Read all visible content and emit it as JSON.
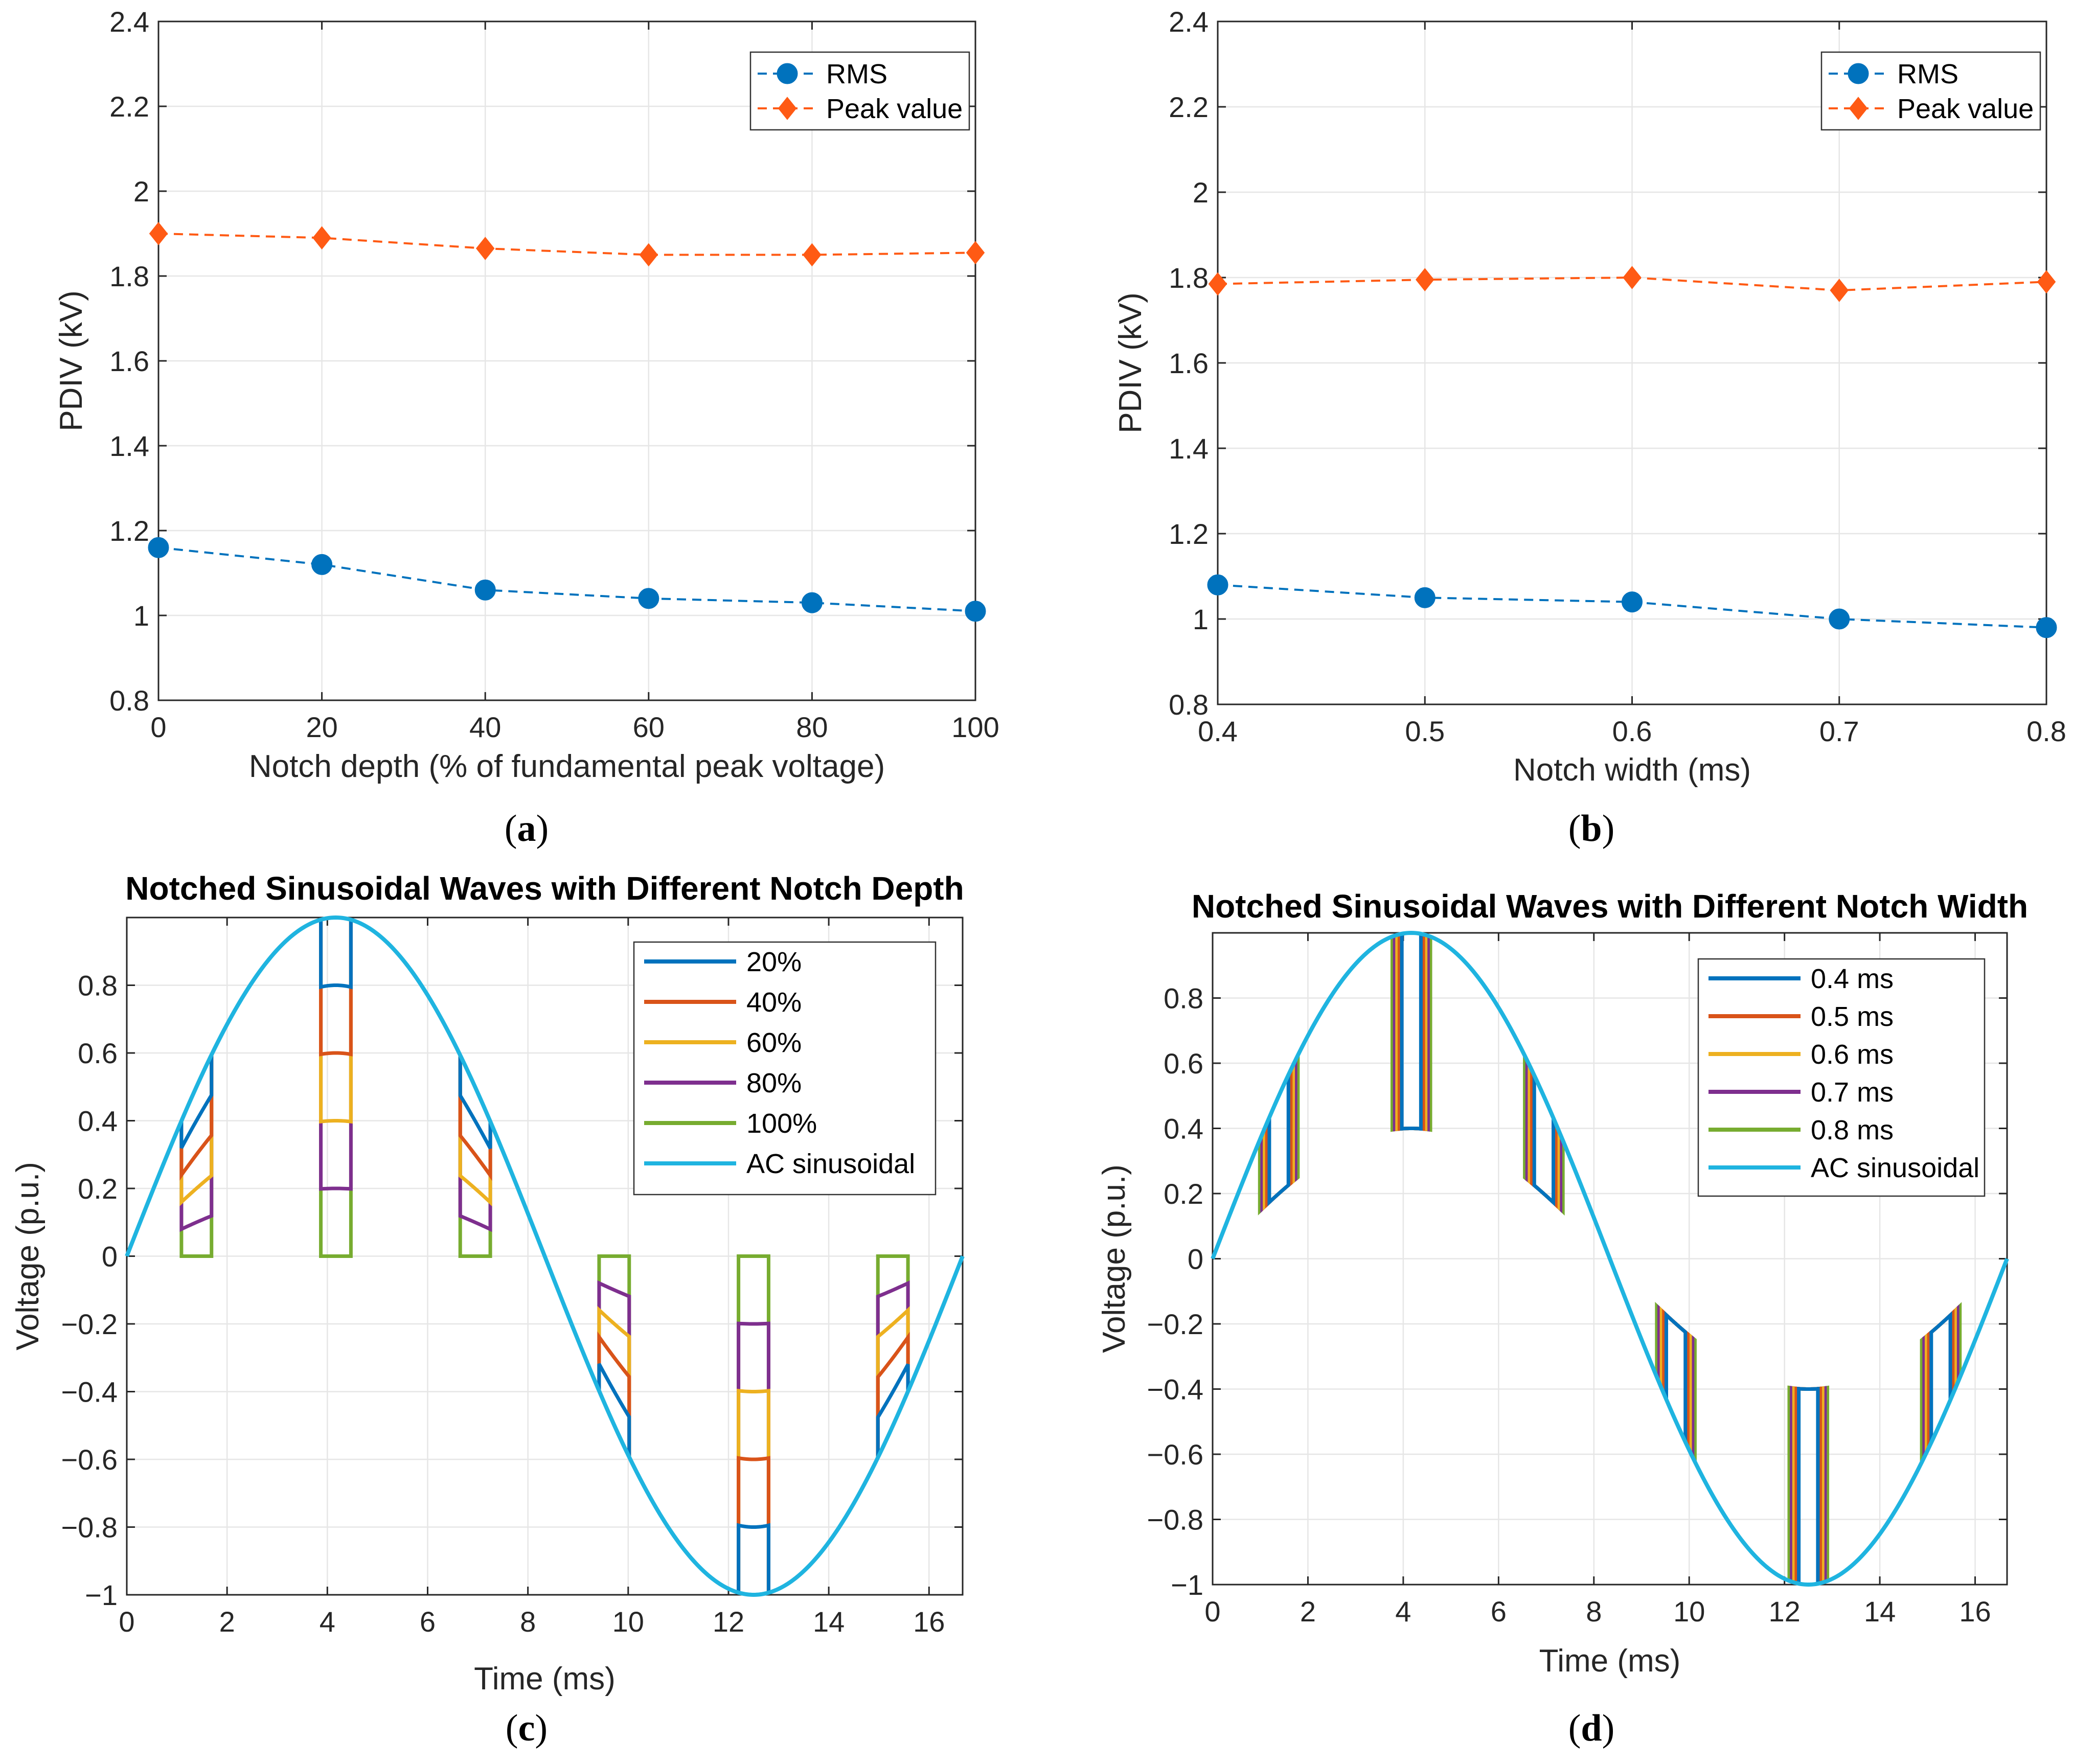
{
  "colors": {
    "rms": "#0072BD",
    "peak": "#FF5A14",
    "series": [
      "#0072BD",
      "#D95319",
      "#EDB120",
      "#7E2F8E",
      "#77AC30"
    ],
    "sine": "#1FB4E0",
    "grid": "#E6E6E6",
    "axis": "#262626"
  },
  "chart_data": [
    {
      "id": "a",
      "type": "line",
      "caption": "a",
      "title": "",
      "xlabel": "Notch depth (% of fundamental peak voltage)",
      "ylabel": "PDIV (kV)",
      "xlim": [
        0,
        100
      ],
      "ylim": [
        0.8,
        2.4
      ],
      "xticks": [
        0,
        20,
        40,
        60,
        80,
        100
      ],
      "yticks": [
        0.8,
        1,
        1.2,
        1.4,
        1.6,
        1.8,
        2,
        2.2,
        2.4
      ],
      "xtick_labels": [
        "0",
        "20",
        "40",
        "60",
        "80",
        "100"
      ],
      "ytick_labels": [
        "0.8",
        "1",
        "1.2",
        "1.4",
        "1.6",
        "1.8",
        "2",
        "2.2",
        "2.4"
      ],
      "x": [
        0,
        20,
        40,
        60,
        80,
        100
      ],
      "series": [
        {
          "name": "RMS",
          "marker": "circle",
          "values": [
            1.16,
            1.12,
            1.06,
            1.04,
            1.03,
            1.01
          ]
        },
        {
          "name": "Peak value",
          "marker": "diamond",
          "values": [
            1.9,
            1.89,
            1.865,
            1.85,
            1.85,
            1.855
          ]
        }
      ]
    },
    {
      "id": "b",
      "type": "line",
      "caption": "b",
      "title": "",
      "xlabel": "Notch width (ms)",
      "ylabel": "PDIV (kV)",
      "xlim": [
        0.4,
        0.8
      ],
      "ylim": [
        0.8,
        2.4
      ],
      "xticks": [
        0.4,
        0.5,
        0.6,
        0.7,
        0.8
      ],
      "yticks": [
        0.8,
        1,
        1.2,
        1.4,
        1.6,
        1.8,
        2,
        2.2,
        2.4
      ],
      "xtick_labels": [
        "0.4",
        "0.5",
        "0.6",
        "0.7",
        "0.8"
      ],
      "ytick_labels": [
        "0.8",
        "1",
        "1.2",
        "1.4",
        "1.6",
        "1.8",
        "2",
        "2.2",
        "2.4"
      ],
      "x": [
        0.4,
        0.5,
        0.6,
        0.7,
        0.8
      ],
      "series": [
        {
          "name": "RMS",
          "marker": "circle",
          "values": [
            1.08,
            1.05,
            1.04,
            1.0,
            0.98
          ]
        },
        {
          "name": "Peak value",
          "marker": "diamond",
          "values": [
            1.785,
            1.795,
            1.8,
            1.77,
            1.79
          ]
        }
      ]
    },
    {
      "id": "c",
      "type": "line",
      "caption": "c",
      "title": "Notched Sinusoidal Waves with Different Notch Depth",
      "xlabel": "Time (ms)",
      "ylabel": "Voltage (p.u.)",
      "xlim": [
        0,
        16.67
      ],
      "ylim": [
        -1,
        1
      ],
      "xticks": [
        0,
        2,
        4,
        6,
        8,
        10,
        12,
        14,
        16
      ],
      "yticks": [
        -1,
        -0.8,
        -0.6,
        -0.4,
        -0.2,
        0,
        0.2,
        0.4,
        0.6,
        0.8
      ],
      "xtick_labels": [
        "0",
        "2",
        "4",
        "6",
        "8",
        "10",
        "12",
        "14",
        "16"
      ],
      "ytick_labels": [
        "−1",
        "−0.8",
        "−0.6",
        "−0.4",
        "−0.2",
        "0",
        "0.2",
        "0.4",
        "0.6",
        "0.8"
      ],
      "period_ms": 16.67,
      "notch_centers_ms": [
        1.39,
        4.17,
        6.95,
        9.72,
        12.5,
        15.28
      ],
      "notch_width_ms": 0.6,
      "series": [
        {
          "name": "20%",
          "depth": 0.2
        },
        {
          "name": "40%",
          "depth": 0.4
        },
        {
          "name": "60%",
          "depth": 0.6
        },
        {
          "name": "80%",
          "depth": 0.8
        },
        {
          "name": "100%",
          "depth": 1.0
        },
        {
          "name": "AC sinusoidal"
        }
      ]
    },
    {
      "id": "d",
      "type": "line",
      "caption": "d",
      "title": "Notched Sinusoidal Waves with Different Notch Width",
      "xlabel": "Time (ms)",
      "ylabel": "Voltage (p.u.)",
      "xlim": [
        0,
        16.67
      ],
      "ylim": [
        -1,
        1
      ],
      "xticks": [
        0,
        2,
        4,
        6,
        8,
        10,
        12,
        14,
        16
      ],
      "yticks": [
        -1,
        -0.8,
        -0.6,
        -0.4,
        -0.2,
        0,
        0.2,
        0.4,
        0.6,
        0.8
      ],
      "xtick_labels": [
        "0",
        "2",
        "4",
        "6",
        "8",
        "10",
        "12",
        "14",
        "16"
      ],
      "ytick_labels": [
        "−1",
        "−0.8",
        "−0.6",
        "−0.4",
        "−0.2",
        "0",
        "0.2",
        "0.4",
        "0.6",
        "0.8"
      ],
      "period_ms": 16.67,
      "notch_centers_ms": [
        1.39,
        4.17,
        6.95,
        9.72,
        12.5,
        15.28
      ],
      "notch_depth": 0.6,
      "series": [
        {
          "name": "0.4 ms",
          "width": 0.4
        },
        {
          "name": "0.5 ms",
          "width": 0.5
        },
        {
          "name": "0.6 ms",
          "width": 0.6
        },
        {
          "name": "0.7 ms",
          "width": 0.7
        },
        {
          "name": "0.8 ms",
          "width": 0.8
        },
        {
          "name": "AC sinusoidal"
        }
      ]
    }
  ]
}
